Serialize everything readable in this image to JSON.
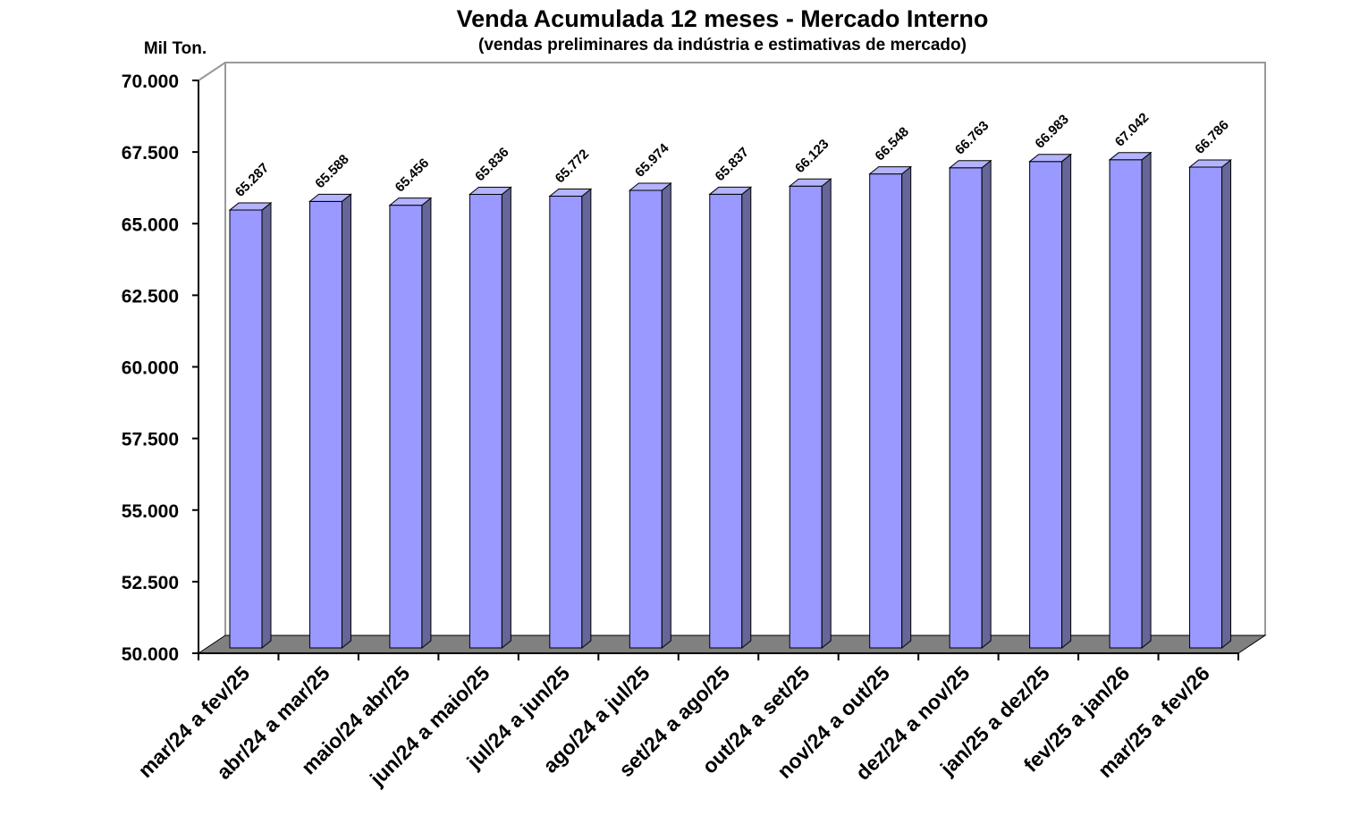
{
  "chart_data": {
    "type": "bar",
    "title": "Venda Acumulada 12 meses -  Mercado Interno",
    "subtitle": "(vendas preliminares da indústria e estimativas de mercado)",
    "y_axis_label": "Mil Ton.",
    "categories": [
      "mar/24 a fev/25",
      "abr/24 a mar/25",
      "maio/24 abr/25",
      "jun/24 a maio/25",
      "jul/24 a jun/25",
      "ago/24 a jul/25",
      "set/24 a ago/25",
      "out/24 a set/25",
      "nov/24 a out/25",
      "dez/24 a nov/25",
      "jan/25 a dez/25",
      "fev/25 a jan/26",
      "mar/25 a fev/26"
    ],
    "values": [
      65287,
      65588,
      65456,
      65836,
      65772,
      65974,
      65837,
      66123,
      66548,
      66763,
      66983,
      67042,
      66786
    ],
    "value_labels": [
      "65.287",
      "65.588",
      "65.456",
      "65.836",
      "65.772",
      "65.974",
      "65.837",
      "66.123",
      "66.548",
      "66.763",
      "66.983",
      "67.042",
      "66.786"
    ],
    "color": "#9999ff",
    "ylim": [
      50000,
      70000
    ],
    "yticks": [
      {
        "value": 50000,
        "label": "50.000"
      },
      {
        "value": 52500,
        "label": "52.500"
      },
      {
        "value": 55000,
        "label": "55.000"
      },
      {
        "value": 57500,
        "label": "57.500"
      },
      {
        "value": 60000,
        "label": "60.000"
      },
      {
        "value": 62500,
        "label": "62.500"
      },
      {
        "value": 65000,
        "label": "65.000"
      },
      {
        "value": 67500,
        "label": "67.500"
      },
      {
        "value": 70000,
        "label": "70.000"
      }
    ]
  }
}
